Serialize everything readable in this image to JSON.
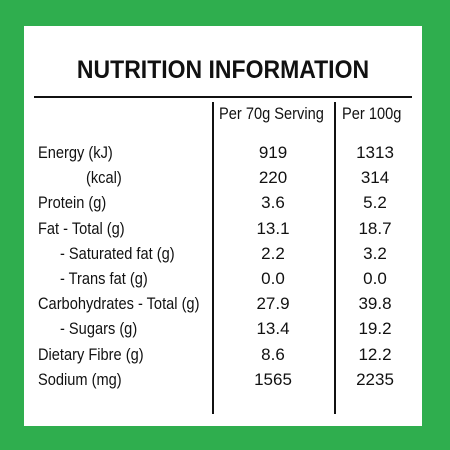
{
  "title": "NUTRITION INFORMATION",
  "table": {
    "header": [
      "Per 70g Serving",
      "Per 100g"
    ],
    "rows": [
      [
        "Energy (kJ)",
        "919",
        "1313"
      ],
      [
        "(kcal)",
        "220",
        "314"
      ],
      [
        "Protein (g)",
        "3.6",
        "5.2"
      ],
      [
        "Fat - Total (g)",
        "13.1",
        "18.7"
      ],
      [
        "- Saturated fat (g)",
        "2.2",
        "3.2"
      ],
      [
        "- Trans fat (g)",
        "0.0",
        "0.0"
      ],
      [
        "Carbohydrates - Total (g)",
        "27.9",
        "39.8"
      ],
      [
        "- Sugars (g)",
        "13.4",
        "19.2"
      ],
      [
        "Dietary Fibre (g)",
        "8.6",
        "12.2"
      ],
      [
        "Sodium (mg)",
        "1565",
        "2235"
      ]
    ]
  }
}
